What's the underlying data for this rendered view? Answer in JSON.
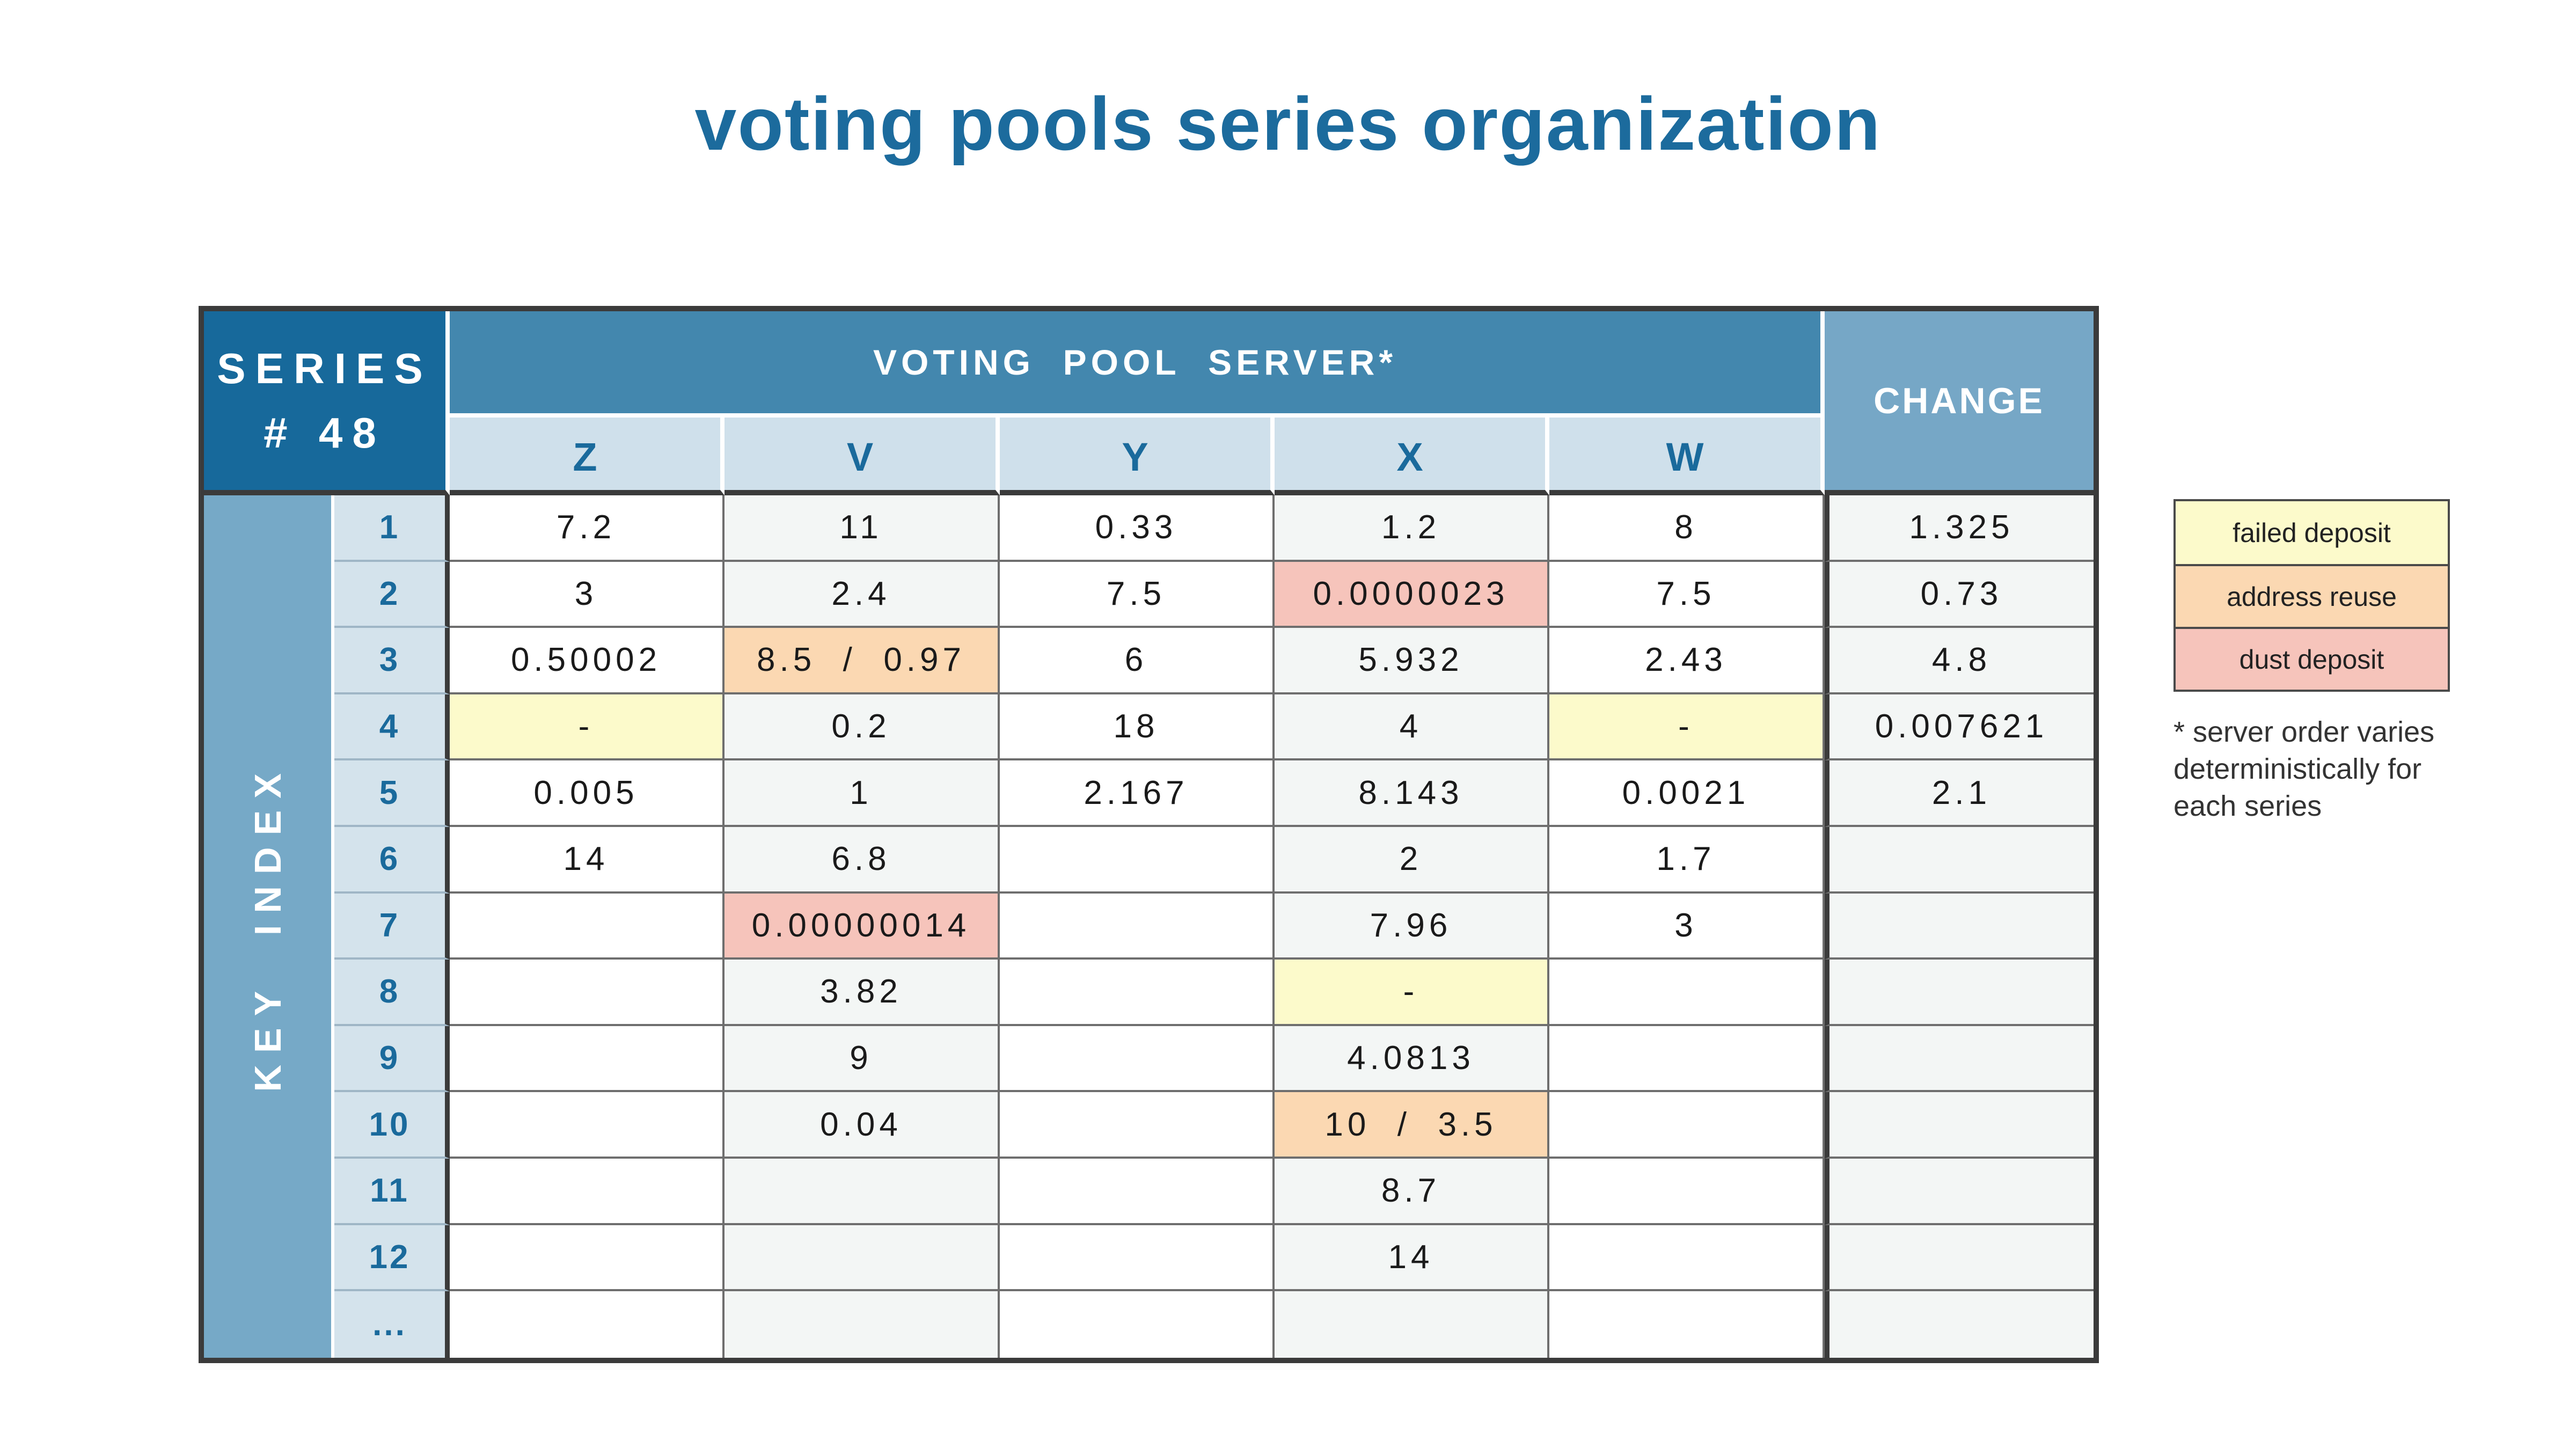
{
  "title": "voting pools series organization",
  "table": {
    "corner_line1": "SERIES",
    "corner_line2": "# 48",
    "group_header": "VOTING  POOL  SERVER*",
    "change_header": "CHANGE",
    "key_index_label": "KEY  INDEX",
    "server_columns": [
      "Z",
      "V",
      "Y",
      "X",
      "W"
    ],
    "rows": [
      {
        "index": "1",
        "cells": [
          {
            "v": "7.2"
          },
          {
            "v": "11"
          },
          {
            "v": "0.33"
          },
          {
            "v": "1.2"
          },
          {
            "v": "8"
          },
          {
            "v": "1.325"
          }
        ]
      },
      {
        "index": "2",
        "cells": [
          {
            "v": "3"
          },
          {
            "v": "2.4"
          },
          {
            "v": "7.5"
          },
          {
            "v": "0.0000023",
            "hl": "dust"
          },
          {
            "v": "7.5"
          },
          {
            "v": "0.73"
          }
        ]
      },
      {
        "index": "3",
        "cells": [
          {
            "v": "0.50002"
          },
          {
            "v": "8.5  /  0.97",
            "hl": "reuse"
          },
          {
            "v": "6"
          },
          {
            "v": "5.932"
          },
          {
            "v": "2.43"
          },
          {
            "v": "4.8"
          }
        ]
      },
      {
        "index": "4",
        "cells": [
          {
            "v": "-",
            "hl": "failed"
          },
          {
            "v": "0.2"
          },
          {
            "v": "18"
          },
          {
            "v": "4"
          },
          {
            "v": "-",
            "hl": "failed"
          },
          {
            "v": "0.007621"
          }
        ]
      },
      {
        "index": "5",
        "cells": [
          {
            "v": "0.005"
          },
          {
            "v": "1"
          },
          {
            "v": "2.167"
          },
          {
            "v": "8.143"
          },
          {
            "v": "0.0021"
          },
          {
            "v": "2.1"
          }
        ]
      },
      {
        "index": "6",
        "cells": [
          {
            "v": "14"
          },
          {
            "v": "6.8"
          },
          {
            "v": ""
          },
          {
            "v": "2"
          },
          {
            "v": "1.7"
          },
          {
            "v": ""
          }
        ]
      },
      {
        "index": "7",
        "cells": [
          {
            "v": ""
          },
          {
            "v": "0.00000014",
            "hl": "dust"
          },
          {
            "v": ""
          },
          {
            "v": "7.96"
          },
          {
            "v": "3"
          },
          {
            "v": ""
          }
        ]
      },
      {
        "index": "8",
        "cells": [
          {
            "v": ""
          },
          {
            "v": "3.82"
          },
          {
            "v": ""
          },
          {
            "v": "-",
            "hl": "failed"
          },
          {
            "v": ""
          },
          {
            "v": ""
          }
        ]
      },
      {
        "index": "9",
        "cells": [
          {
            "v": ""
          },
          {
            "v": "9"
          },
          {
            "v": ""
          },
          {
            "v": "4.0813"
          },
          {
            "v": ""
          },
          {
            "v": ""
          }
        ]
      },
      {
        "index": "10",
        "cells": [
          {
            "v": ""
          },
          {
            "v": "0.04"
          },
          {
            "v": ""
          },
          {
            "v": "10  /  3.5",
            "hl": "reuse"
          },
          {
            "v": ""
          },
          {
            "v": ""
          }
        ]
      },
      {
        "index": "11",
        "cells": [
          {
            "v": ""
          },
          {
            "v": ""
          },
          {
            "v": ""
          },
          {
            "v": "8.7"
          },
          {
            "v": ""
          },
          {
            "v": ""
          }
        ]
      },
      {
        "index": "12",
        "cells": [
          {
            "v": ""
          },
          {
            "v": ""
          },
          {
            "v": ""
          },
          {
            "v": "14"
          },
          {
            "v": ""
          },
          {
            "v": ""
          }
        ]
      },
      {
        "index": "...",
        "cells": [
          {
            "v": ""
          },
          {
            "v": ""
          },
          {
            "v": ""
          },
          {
            "v": ""
          },
          {
            "v": ""
          },
          {
            "v": ""
          }
        ]
      }
    ]
  },
  "legend": {
    "items": [
      {
        "label": "failed deposit",
        "color": "#FCFACB",
        "type": "failed"
      },
      {
        "label": "address reuse",
        "color": "#FBD8B2",
        "type": "reuse"
      },
      {
        "label": "dust deposit",
        "color": "#F6C4BB",
        "type": "dust"
      }
    ],
    "note": "* server order varies\ndeterministically for\neach series"
  },
  "colors": {
    "title_blue": "#1C6B9D",
    "corner_bg": "#17699B",
    "group_header_bg": "#4387AE",
    "change_header_bg": "#76A7C6",
    "key_index_bg": "#76A9C7",
    "subheader_bg": "#CFE0EB",
    "row_number_bg": "#D4E3EC",
    "shade_column_bg": "#F3F6F5",
    "blue_text": "#1A6A9C"
  }
}
